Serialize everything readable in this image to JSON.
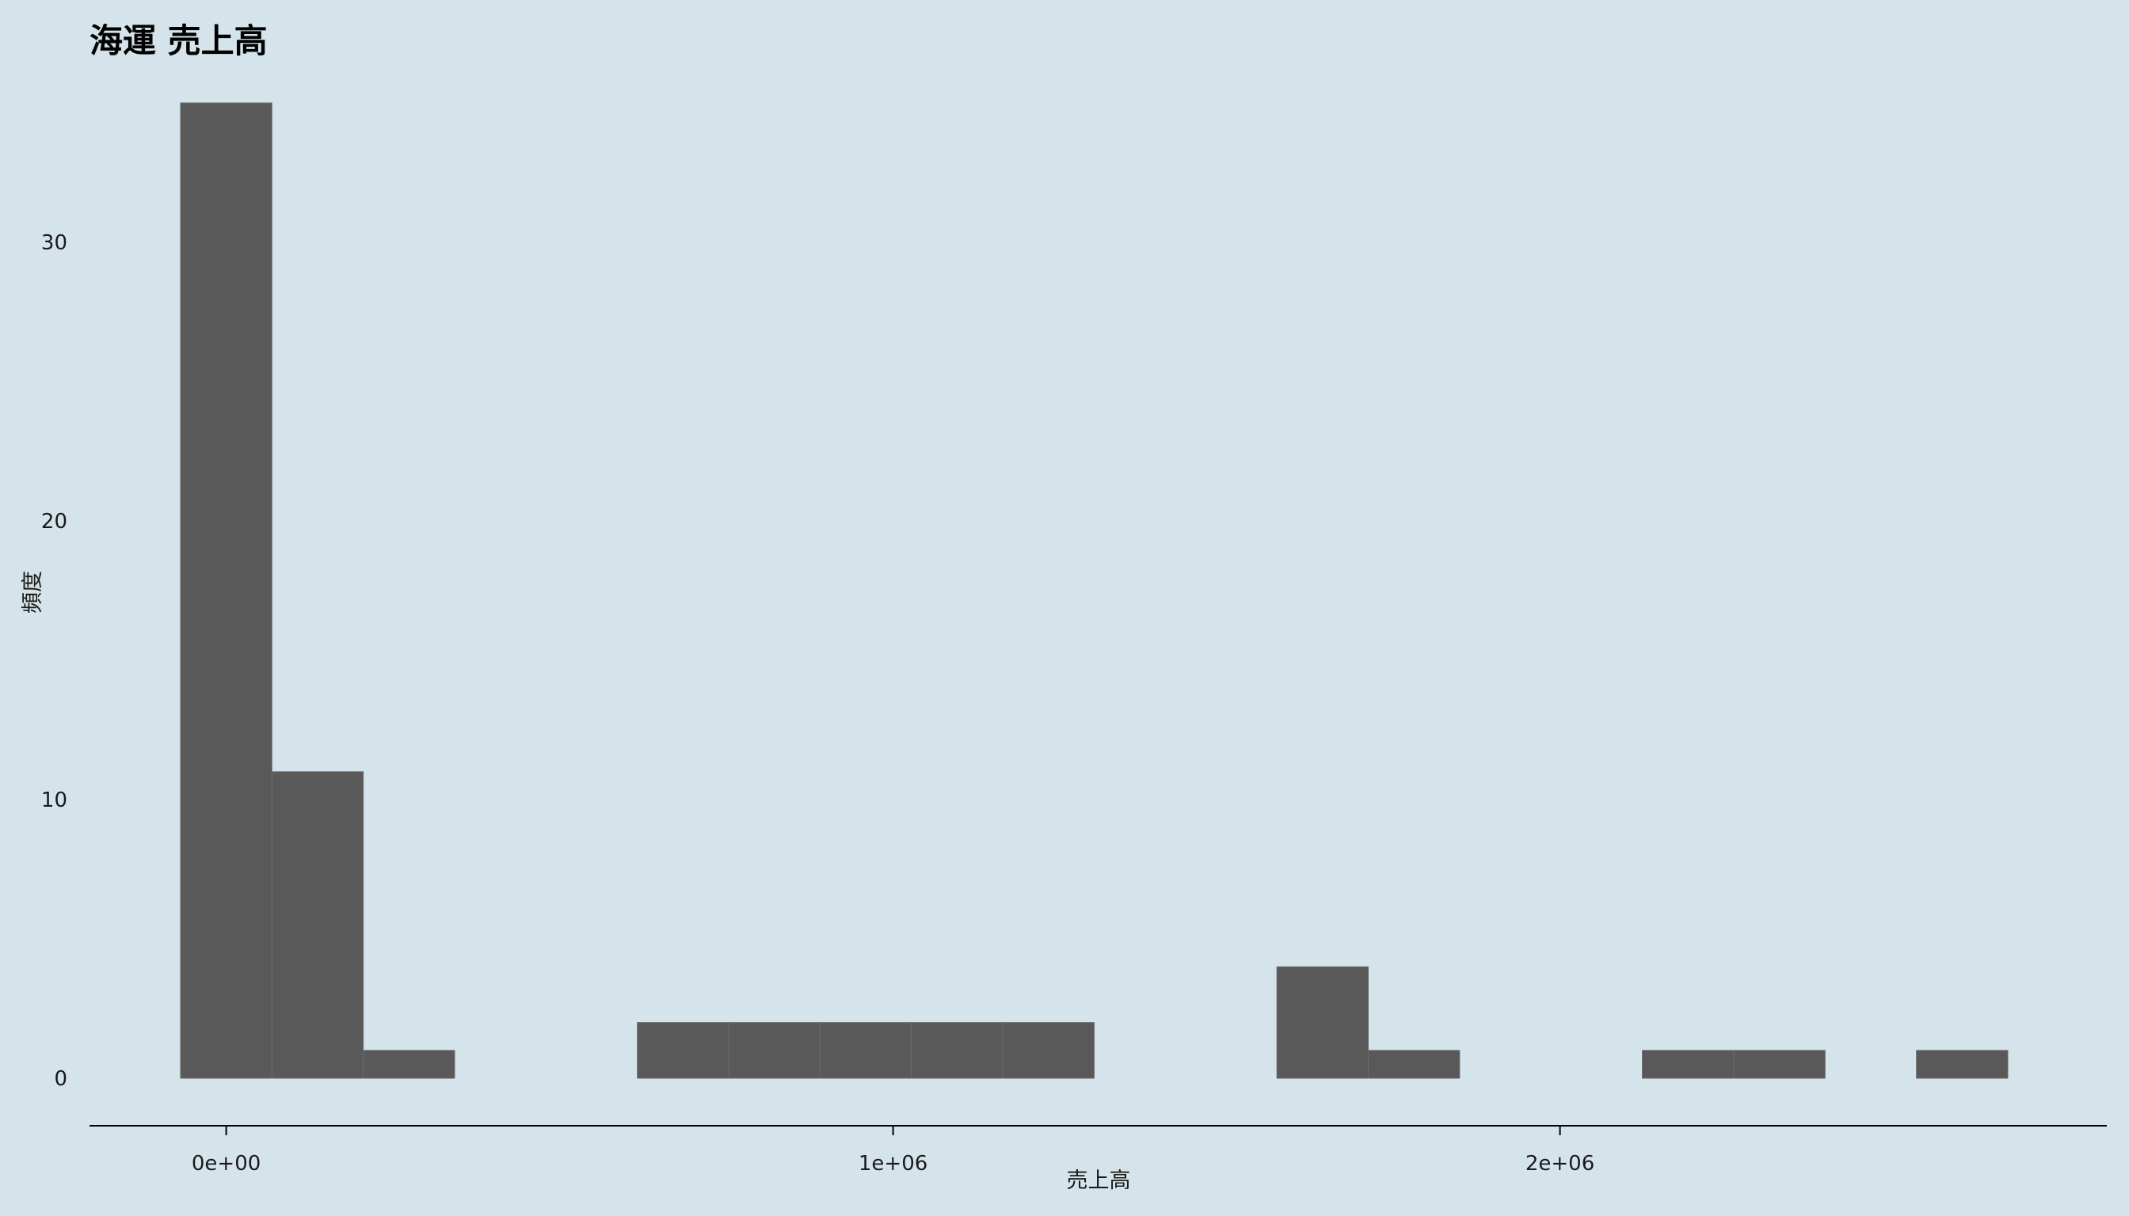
{
  "chart_data": {
    "type": "bar",
    "title": "海運 売上高",
    "xlabel": "売上高",
    "ylabel": "頻度",
    "bar_color": "#595959",
    "background": "#d5e4eb",
    "grid": false,
    "bin_width": 137000,
    "bins": [
      {
        "start": -68500,
        "count": 35
      },
      {
        "start": 68500,
        "count": 11
      },
      {
        "start": 205500,
        "count": 1
      },
      {
        "start": 342500,
        "count": 0
      },
      {
        "start": 479500,
        "count": 0
      },
      {
        "start": 616500,
        "count": 2
      },
      {
        "start": 753500,
        "count": 2
      },
      {
        "start": 890500,
        "count": 2
      },
      {
        "start": 1027500,
        "count": 2
      },
      {
        "start": 1164500,
        "count": 2
      },
      {
        "start": 1301500,
        "count": 0
      },
      {
        "start": 1438500,
        "count": 0
      },
      {
        "start": 1575500,
        "count": 4
      },
      {
        "start": 1712500,
        "count": 1
      },
      {
        "start": 1849500,
        "count": 0
      },
      {
        "start": 1986500,
        "count": 0
      },
      {
        "start": 2123500,
        "count": 1
      },
      {
        "start": 2260500,
        "count": 1
      },
      {
        "start": 2397500,
        "count": 0
      },
      {
        "start": 2534500,
        "count": 1
      }
    ],
    "xlim": [
      -205000,
      2820000
    ],
    "ylim": [
      0,
      35
    ],
    "x_ticks": [
      {
        "value": 0,
        "label": "0e+00"
      },
      {
        "value": 1000000,
        "label": "1e+06"
      },
      {
        "value": 2000000,
        "label": "2e+06"
      }
    ],
    "y_ticks": [
      {
        "value": 0,
        "label": "0"
      },
      {
        "value": 10,
        "label": "10"
      },
      {
        "value": 20,
        "label": "20"
      },
      {
        "value": 30,
        "label": "30"
      }
    ]
  }
}
